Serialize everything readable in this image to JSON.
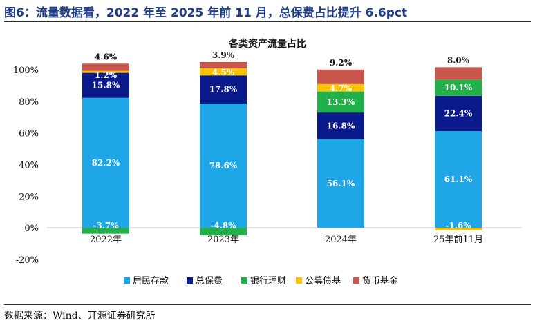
{
  "figure_title": "图6：流量数据看，2022 年至 2025 年前 11 月，总保费占比提升 6.6pct",
  "source": "数据来源：Wind、开源证券研究所",
  "chart_data": {
    "type": "bar",
    "stacked": true,
    "title": "各类资产流量占比",
    "categories": [
      "2022年",
      "2023年",
      "2024年",
      "25年前11月"
    ],
    "ylim": [
      -20,
      100
    ],
    "yticks": [
      -20,
      0,
      20,
      40,
      60,
      80,
      100
    ],
    "ytick_labels": [
      "-20%",
      "0%",
      "20%",
      "40%",
      "60%",
      "80%",
      "100%"
    ],
    "grid": false,
    "legend_position": "bottom",
    "series": [
      {
        "name": "居民存款",
        "color": "#1ea6e6",
        "values": [
          82.2,
          78.6,
          56.1,
          61.1
        ],
        "labels": [
          "82.2%",
          "78.6%",
          "56.1%",
          "61.1%"
        ],
        "label_color": "#ffffff"
      },
      {
        "name": "总保费",
        "color": "#0b1a8a",
        "values": [
          15.8,
          17.8,
          16.8,
          22.4
        ],
        "labels": [
          "15.8%",
          "17.8%",
          "16.8%",
          "22.4%"
        ],
        "label_color": "#ffffff"
      },
      {
        "name": "银行理财",
        "color": "#22b04a",
        "values": [
          -3.7,
          -4.8,
          13.3,
          10.1
        ],
        "labels": [
          "-3.7%",
          "-4.8%",
          "13.3%",
          "10.1%"
        ],
        "label_color": "#ffffff"
      },
      {
        "name": "公募债基",
        "color": "#f7c300",
        "values": [
          1.2,
          4.5,
          4.7,
          -1.6
        ],
        "labels": [
          "1.2%",
          "4.5%",
          "4.7%",
          "-1.6%"
        ],
        "label_color": "#ffffff"
      },
      {
        "name": "货币基金",
        "color": "#c9574d",
        "values": [
          4.6,
          3.9,
          9.2,
          8.0
        ],
        "labels": [
          "4.6%",
          "3.9%",
          "9.2%",
          "8.0%"
        ],
        "label_color": "#111111"
      }
    ]
  }
}
